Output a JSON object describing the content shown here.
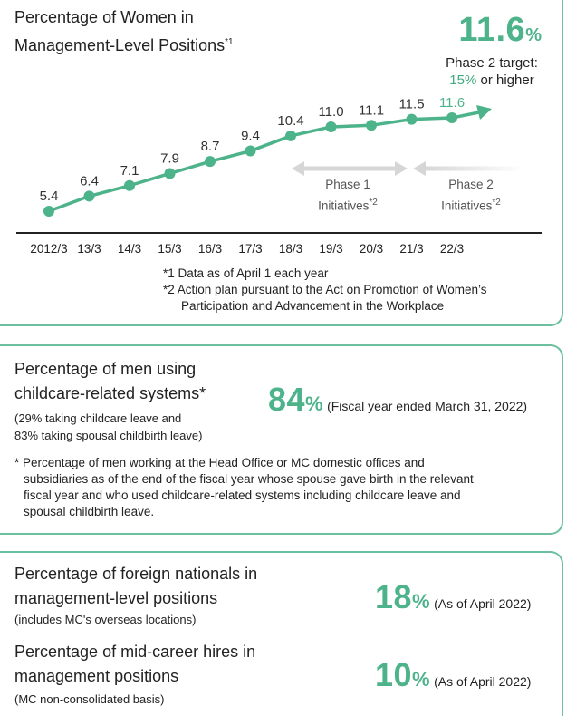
{
  "panel1": {
    "title_line1": "Percentage of Women in",
    "title_line2": "Management-Level Positions",
    "title_sup": "*1",
    "headline_value": "11.6",
    "headline_unit": "%",
    "target_line1": "Phase 2 target:",
    "target_value": "15%",
    "target_rest": " or higher",
    "phase1_label_line1": "Phase 1",
    "phase1_label_line2": "Initiatives",
    "phase2_label_line1": "Phase 2",
    "phase2_label_line2": "Initiatives",
    "phase_sup": "*2",
    "note1": "*1 Data as of April 1 each year",
    "note2_line1": "*2 Action plan pursuant to the Act on Promotion of Women’s",
    "note2_line2": "Participation and Advancement in the Workplace"
  },
  "chart_data": {
    "type": "line",
    "categories": [
      "2012/3",
      "13/3",
      "14/3",
      "15/3",
      "16/3",
      "17/3",
      "18/3",
      "19/3",
      "20/3",
      "21/3",
      "22/3"
    ],
    "series": [
      {
        "values": [
          5.4,
          6.4,
          7.1,
          7.9,
          8.7,
          9.4,
          10.4,
          11.0,
          11.1,
          11.5,
          11.6
        ]
      }
    ],
    "value_labels": [
      "5.4",
      "6.4",
      "7.1",
      "7.9",
      "8.7",
      "9.4",
      "10.4",
      "11.0",
      "11.1",
      "11.5",
      "11.6"
    ],
    "highlight_index": 10,
    "line_color": "#4db38a",
    "grid": false,
    "xlabel": "",
    "ylabel": ""
  },
  "panel2": {
    "title_line1": "Percentage of men using",
    "title_line2": "childcare-related systems*",
    "sub_line1": "(29% taking childcare leave and",
    "sub_line2": "83% taking spousal childbirth leave)",
    "value": "84",
    "unit": "%",
    "period": "(Fiscal year ended March 31, 2022)",
    "note_line1": "* Percentage of men working at the Head Office or MC domestic offices and",
    "note_line2": "subsidiaries as of the end of the fiscal year whose spouse gave birth in the relevant",
    "note_line3": "fiscal year and who used childcare-related systems including childcare leave and",
    "note_line4": "spousal childbirth leave."
  },
  "panel3": {
    "item1_title_line1": "Percentage of foreign nationals in",
    "item1_title_line2": "management-level positions",
    "item1_sub": "(includes MC's overseas locations)",
    "item1_value": "18",
    "item1_unit": "%",
    "item1_period": "(As of April 2022)",
    "item2_title_line1": "Percentage of mid-career hires in",
    "item2_title_line2": "management positions",
    "item2_sub": "(MC non-consolidated basis)",
    "item2_value": "10",
    "item2_unit": "%",
    "item2_period": "(As of April 2022)"
  },
  "colors": {
    "accent": "#4db38a",
    "border": "#6cc0a0",
    "phase_arrow": "#d6d6d6"
  }
}
